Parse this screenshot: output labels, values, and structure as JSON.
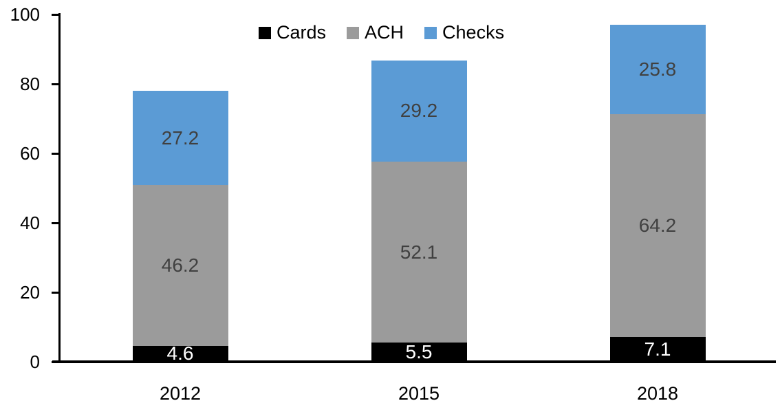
{
  "chart_data": {
    "type": "bar",
    "stacked": true,
    "title": "",
    "xlabel": "",
    "ylabel": "",
    "grid": false,
    "categories": [
      "2012",
      "2015",
      "2018"
    ],
    "series": [
      {
        "name": "Cards",
        "color": "#000000",
        "label_color": "#ffffff",
        "values": [
          4.6,
          5.5,
          7.1
        ]
      },
      {
        "name": "ACH",
        "color": "#9B9B9B",
        "label_color": "#404040",
        "values": [
          46.2,
          52.1,
          64.2
        ]
      },
      {
        "name": "Checks",
        "color": "#5B9BD5",
        "label_color": "#404040",
        "values": [
          27.2,
          29.2,
          25.8
        ]
      }
    ],
    "totals": [
      78.0,
      86.8,
      97.1
    ],
    "y_axis": {
      "min": 0,
      "max": 100,
      "tick_step": 20,
      "tick_labels": [
        "0",
        "20",
        "40",
        "60",
        "80",
        "100"
      ]
    },
    "legend": {
      "position": "top",
      "entries": [
        "Cards",
        "ACH",
        "Checks"
      ]
    },
    "axis_color": "#000000"
  }
}
